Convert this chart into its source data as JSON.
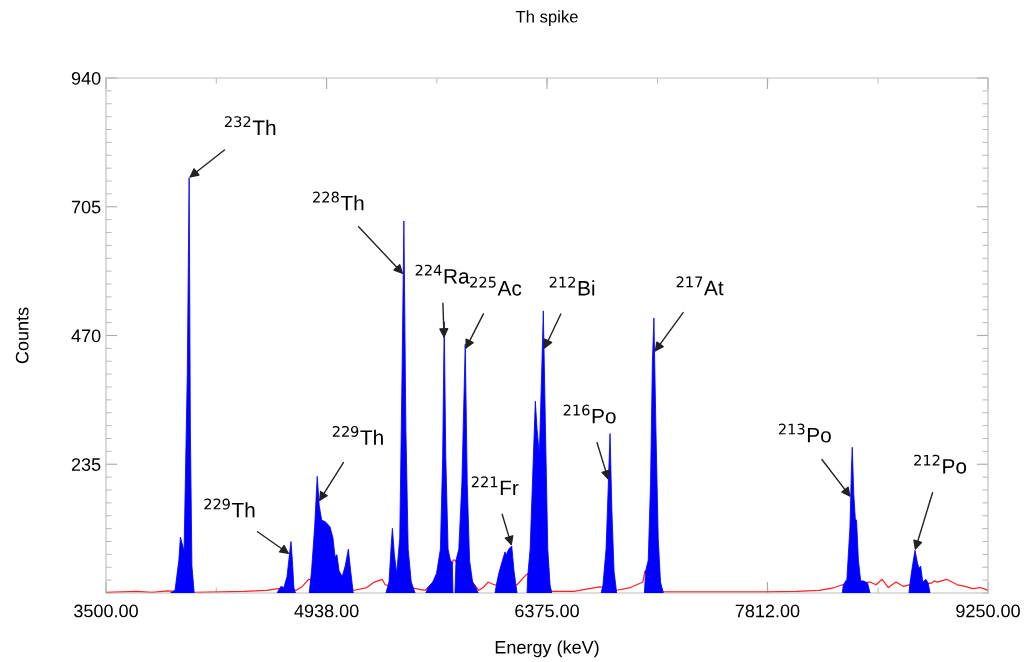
{
  "chart_data": {
    "type": "area",
    "title": "Th spike",
    "xlabel": "Energy (keV)",
    "ylabel": "Counts",
    "xlim": [
      3500,
      9250
    ],
    "xticks": [
      {
        "value": 3500,
        "label": "3500.00"
      },
      {
        "value": 4938,
        "label": "4938.00"
      },
      {
        "value": 6375,
        "label": "6375.00"
      },
      {
        "value": 7812,
        "label": "7812.00"
      },
      {
        "value": 9250,
        "label": "9250.00"
      }
    ],
    "ylim": [
      0,
      940
    ],
    "yticks": [
      235,
      470,
      705,
      940
    ],
    "series": [
      {
        "type": "line",
        "color": "#ff2020",
        "x": [
          3500,
          3700,
          3800,
          3900,
          4080,
          4250,
          4400,
          4550,
          4620,
          4740,
          4780,
          4820,
          5120,
          5200,
          5250,
          5300,
          5320,
          5520,
          5580,
          5600,
          5760,
          5762,
          5775,
          5930,
          5960,
          5990,
          6030,
          6180,
          6238,
          6249,
          6410,
          6550,
          6650,
          6720,
          6830,
          6920,
          7000,
          7013,
          7135,
          7812,
          8000,
          8150,
          8250,
          8300,
          8480,
          8520,
          8560,
          8600,
          8650,
          8700,
          8735,
          8880,
          8900,
          8920,
          8980,
          9050,
          9100,
          9150,
          9200,
          9250
        ],
        "values": [
          1,
          3,
          1,
          4,
          1,
          2,
          3,
          5,
          8,
          5,
          12,
          25,
          5,
          10,
          20,
          25,
          15,
          8,
          5,
          10,
          55,
          60,
          60,
          5,
          10,
          20,
          15,
          15,
          33,
          35,
          3,
          3,
          8,
          11,
          5,
          10,
          20,
          40,
          2,
          2,
          3,
          5,
          10,
          15,
          20,
          15,
          25,
          10,
          20,
          12,
          15,
          18,
          22,
          20,
          25,
          15,
          12,
          8,
          10,
          5
        ]
      },
      {
        "color": "#0000ff",
        "x": [
          3920,
          3950,
          3975,
          3985,
          4009,
          4030,
          4042,
          4050,
          4060,
          4075,
          4076,
          4615,
          4640,
          4660,
          4680,
          4700,
          4706,
          4715,
          4725,
          4735,
          4736,
          4825,
          4840,
          4860,
          4877,
          4890,
          4906,
          4930,
          4960,
          4980,
          4993,
          5005,
          5020,
          5040,
          5060,
          5080,
          5095,
          5112,
          5113,
          5325,
          5345,
          5360,
          5367,
          5380,
          5395,
          5415,
          5430,
          5442,
          5455,
          5470,
          5490,
          5515,
          5516,
          5585,
          5600,
          5630,
          5655,
          5680,
          5695,
          5705,
          5715,
          5730,
          5745,
          5758,
          5762,
          5763,
          5775,
          5782,
          5800,
          5820,
          5842,
          5855,
          5870,
          5890,
          5910,
          5927,
          5928,
          6036,
          6045,
          6060,
          6080,
          6101,
          6110,
          6125,
          6145,
          6160,
          6172,
          6180,
          6181,
          6245,
          6249,
          6265,
          6280,
          6299,
          6310,
          6325,
          6340,
          6351,
          6365,
          6380,
          6395,
          6405,
          6406,
          6728,
          6740,
          6760,
          6775,
          6786,
          6798,
          6812,
          6829,
          6830,
          7010,
          7018,
          7035,
          7050,
          7062,
          7072,
          7085,
          7100,
          7115,
          7133,
          7134,
          8300,
          8307,
          8330,
          8350,
          8360,
          8365,
          8375,
          8385,
          8393,
          8405,
          8420,
          8440,
          8465,
          8481,
          8482,
          8735,
          8740,
          8755,
          8774,
          8790,
          8800,
          8811,
          8825,
          8845,
          8860,
          8872
        ],
        "values": [
          0,
          5,
          60,
          102,
          77,
          400,
          758,
          300,
          50,
          0,
          null,
          0,
          12,
          10,
          30,
          80,
          94,
          60,
          10,
          0,
          null,
          0,
          40,
          120,
          213,
          160,
          133,
          130,
          121,
          100,
          66,
          70,
          40,
          30,
          50,
          80,
          40,
          0,
          null,
          0,
          20,
          90,
          118,
          70,
          36,
          100,
          400,
          679,
          300,
          80,
          20,
          0,
          null,
          0,
          10,
          20,
          36,
          80,
          250,
          495,
          250,
          80,
          60,
          55,
          0,
          null,
          0,
          60,
          80,
          200,
          454,
          200,
          60,
          20,
          10,
          0,
          null,
          0,
          15,
          35,
          55,
          75,
          70,
          80,
          86,
          40,
          15,
          0,
          null,
          0,
          30,
          80,
          200,
          350,
          300,
          252,
          400,
          515,
          300,
          80,
          15,
          0,
          null,
          0,
          15,
          80,
          200,
          291,
          150,
          40,
          0,
          null,
          0,
          40,
          60,
          200,
          420,
          502,
          300,
          100,
          20,
          0,
          null,
          0,
          15,
          25,
          120,
          230,
          266,
          180,
          135,
          133,
          60,
          22,
          22,
          18,
          0,
          null,
          0,
          15,
          45,
          78,
          55,
          45,
          49,
          20,
          25,
          18,
          0
        ]
      }
    ],
    "annotations": [
      {
        "text": "$^{232}$Th",
        "x": 4042,
        "y": 758
      },
      {
        "text": "$^{228}$Th",
        "x": 5438,
        "y": 582
      },
      {
        "text": "$^{224}$Ra",
        "x": 5704,
        "y": 465
      },
      {
        "text": "$^{225}$Ac",
        "x": 5843,
        "y": 445
      },
      {
        "text": "$^{212}$Bi",
        "x": 6356,
        "y": 445
      },
      {
        "text": "$^{217}$At",
        "x": 7076,
        "y": 440
      },
      {
        "text": "$^{229}$Th",
        "x": 4696,
        "y": 71
      },
      {
        "text": "$^{229}$Th",
        "x": 4888,
        "y": 167
      },
      {
        "text": "$^{221}$Fr",
        "x": 6145,
        "y": 86
      },
      {
        "text": "$^{216}$Po",
        "x": 6776,
        "y": 206
      },
      {
        "text": "$^{213}$Po",
        "x": 8355,
        "y": 175
      },
      {
        "text": "$^{212}$Po",
        "x": 8774,
        "y": 78
      }
    ]
  }
}
